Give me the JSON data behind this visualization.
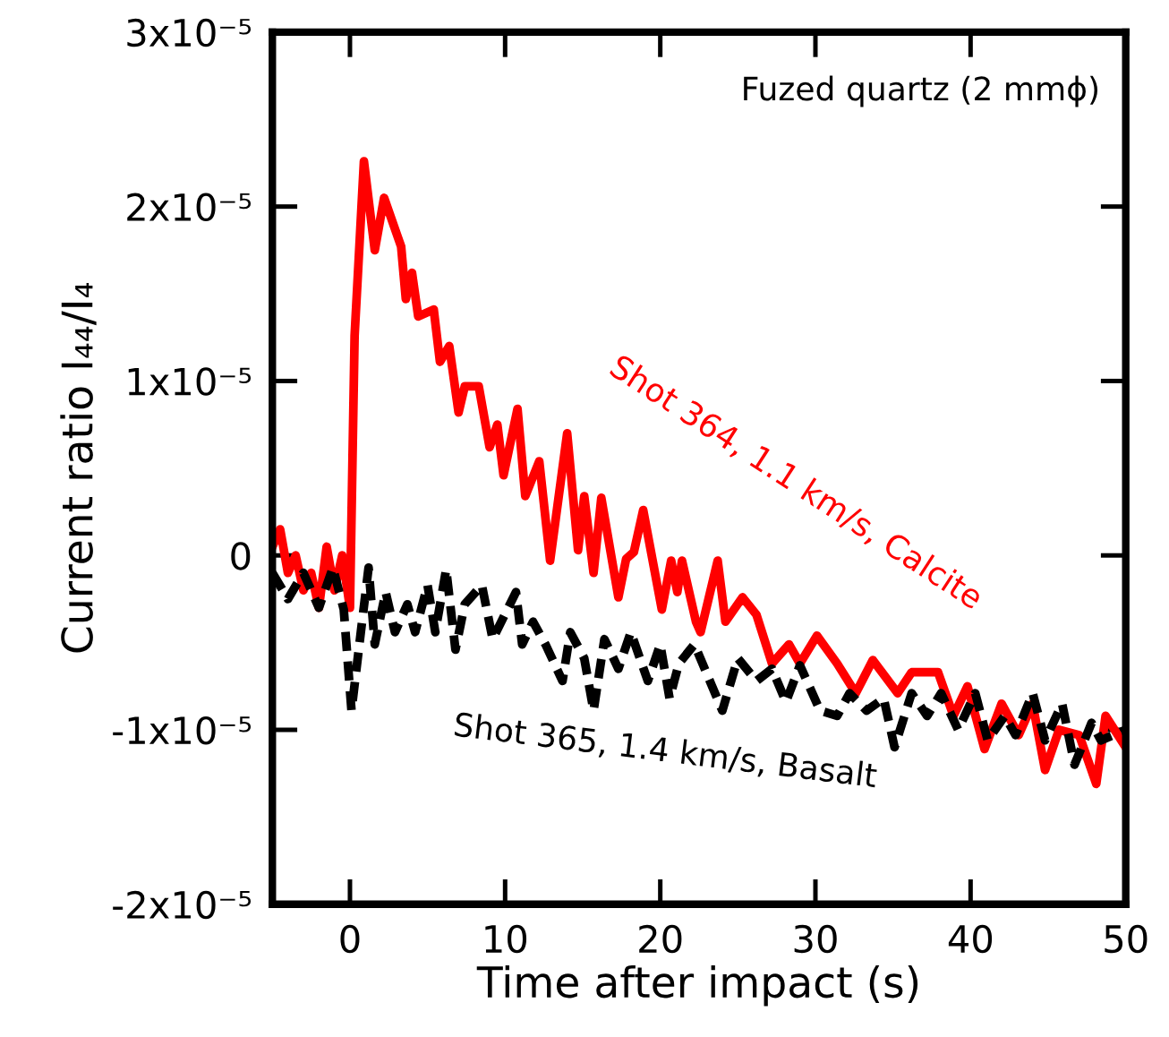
{
  "chart_data": {
    "type": "line",
    "xlabel": "Time after impact (s)",
    "ylabel": "Current ratio I₄₄/I₄",
    "annotations": [
      "Fuzed quartz (2 mmϕ)"
    ],
    "xlim": [
      -5,
      50
    ],
    "xticks": [
      0,
      10,
      20,
      30,
      40,
      50
    ],
    "ylim": [
      -2e-05,
      3e-05
    ],
    "yticks": [
      {
        "value": -2e-05,
        "label": "-2x10⁻⁵"
      },
      {
        "value": -1e-05,
        "label": "-1x10⁻⁵"
      },
      {
        "value": 0,
        "label": "0"
      },
      {
        "value": 1e-05,
        "label": "1x10⁻⁵"
      },
      {
        "value": 2e-05,
        "label": "2x10⁻⁵"
      },
      {
        "value": 3e-05,
        "label": "3x10⁻⁵"
      }
    ],
    "grid": false,
    "legend": false,
    "marker": "none",
    "series": [
      {
        "name": "Shot 364, 1.1 km/s, Calcite",
        "color": "#ff0000",
        "line_style": "solid",
        "x": [
          -5,
          -4.5,
          -4,
          -3.5,
          -3,
          -2.5,
          -2,
          -1.5,
          -1,
          -0.5,
          0,
          0.3,
          0.9,
          1.6,
          2.2,
          3.3,
          3.6,
          4.0,
          4.4,
          5.4,
          5.8,
          6.4,
          7.0,
          7.4,
          8.3,
          9.0,
          9.5,
          9.9,
          10.8,
          11.3,
          12.2,
          12.9,
          14.0,
          14.7,
          15.1,
          15.7,
          16.2,
          17.3,
          17.8,
          18.3,
          18.9,
          20.1,
          20.7,
          21.1,
          21.4,
          22.3,
          22.6,
          23.7,
          24.2,
          25.3,
          26.2,
          27.2,
          28.3,
          29.0,
          30.1,
          31.4,
          32.6,
          33.7,
          35.3,
          36.2,
          37.9,
          38.9,
          39.8,
          40.9,
          42.0,
          43.1,
          44.0,
          44.8,
          45.7,
          47.0,
          48.1,
          48.7,
          50
        ],
        "values": [
          5e-07,
          1.5e-06,
          -1e-06,
          0.0,
          -2e-06,
          -1e-06,
          -3e-06,
          5e-07,
          -2e-06,
          0.0,
          -3e-06,
          1.26e-05,
          2.26e-05,
          1.75e-05,
          2.05e-05,
          1.77e-05,
          1.47e-05,
          1.62e-05,
          1.37e-05,
          1.41e-05,
          1.11e-05,
          1.2e-05,
          8.2e-06,
          9.7e-06,
          9.7e-06,
          6.2e-06,
          7.5e-06,
          4.6e-06,
          8.4e-06,
          3.4e-06,
          5.4e-06,
          -3e-07,
          7e-06,
          3e-07,
          3.4e-06,
          -1e-06,
          3.3e-06,
          -2.4e-06,
          -2e-07,
          2e-07,
          2.6e-06,
          -3.1e-06,
          -3e-07,
          -2.1e-06,
          -3e-07,
          -3.8e-06,
          -4.4e-06,
          -3e-07,
          -3.8e-06,
          -2.4e-06,
          -3.4e-06,
          -6.2e-06,
          -5.1e-06,
          -6.2e-06,
          -4.6e-06,
          -6.2e-06,
          -7.9e-06,
          -6e-06,
          -7.9e-06,
          -6.7e-06,
          -6.7e-06,
          -9.2e-06,
          -7.5e-06,
          -1.11e-05,
          -8.5e-06,
          -1.03e-05,
          -8.5e-06,
          -1.23e-05,
          -1e-05,
          -1.03e-05,
          -1.31e-05,
          -9.2e-06,
          -1.1e-05
        ]
      },
      {
        "name": "Shot 365, 1.4 km/s, Basalt",
        "color": "#000000",
        "line_style": "dashed",
        "x": [
          -5,
          -4,
          -3,
          -2,
          -1.1,
          -0.4,
          0.1,
          0.7,
          1.2,
          1.6,
          2.3,
          2.9,
          3.7,
          4.2,
          5.0,
          5.5,
          6.2,
          6.8,
          7.4,
          8.5,
          9.2,
          10.7,
          11.1,
          11.8,
          12.6,
          13.7,
          14.2,
          15.1,
          15.7,
          16.4,
          17.3,
          18.1,
          19.2,
          20.0,
          20.6,
          21.2,
          22.2,
          24.0,
          25.0,
          26.2,
          27.2,
          28.1,
          29.0,
          30.3,
          31.4,
          32.2,
          33.3,
          34.4,
          35.1,
          36.2,
          37.2,
          38.1,
          39.2,
          40.3,
          41.1,
          42.2,
          42.9,
          44.0,
          44.8,
          45.9,
          46.7,
          47.8,
          48.4,
          50
        ],
        "values": [
          -1e-06,
          -2.5e-06,
          -1e-06,
          -3e-06,
          -7e-07,
          -3.1e-06,
          -8.9e-06,
          -4.4e-06,
          -7e-07,
          -5.1e-06,
          -2.1e-06,
          -4.4e-06,
          -2.8e-06,
          -4.4e-06,
          -1.7e-06,
          -4.4e-06,
          -8e-07,
          -5.4e-06,
          -2.8e-06,
          -1.7e-06,
          -4.8e-06,
          -2.1e-06,
          -5.1e-06,
          -3.8e-06,
          -5.1e-06,
          -7.2e-06,
          -4.4e-06,
          -5.9e-06,
          -8.9e-06,
          -4.8e-06,
          -6.5e-06,
          -4.4e-06,
          -7.2e-06,
          -5.1e-06,
          -8.2e-06,
          -6.2e-06,
          -5.1e-06,
          -8.9e-06,
          -5.9e-06,
          -7.2e-06,
          -6.5e-06,
          -8.4e-06,
          -6.3e-06,
          -8.9e-06,
          -9.2e-06,
          -7.9e-06,
          -8.9e-06,
          -8.2e-06,
          -1.1e-05,
          -7.9e-06,
          -9.2e-06,
          -7.9e-06,
          -1e-05,
          -7.9e-06,
          -1.06e-05,
          -9.2e-06,
          -1.03e-05,
          -7.9e-06,
          -1.06e-05,
          -8.5e-06,
          -1.2e-05,
          -9.6e-06,
          -1.06e-05,
          -1e-05
        ]
      }
    ]
  }
}
